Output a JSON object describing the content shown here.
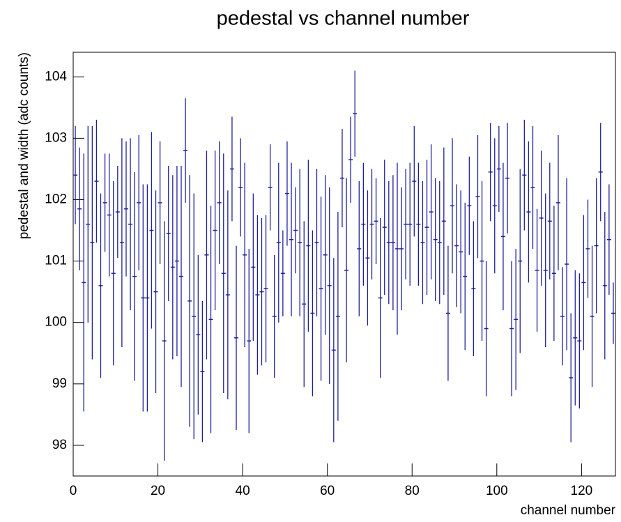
{
  "chart_data": {
    "type": "errorbar",
    "title": "pedestal vs channel number",
    "x_label": "channel number",
    "y_label": "pedestal and width (adc counts)",
    "color": "#1f1f99",
    "xlim": [
      0,
      128
    ],
    "xticks": [
      0,
      20,
      40,
      60,
      80,
      100,
      120
    ],
    "ylim": [
      97.5,
      104.4
    ],
    "yticks": [
      98,
      99,
      100,
      101,
      102,
      103,
      104
    ],
    "x": [
      0.5,
      1.5,
      2.5,
      3.5,
      4.5,
      5.5,
      6.5,
      7.5,
      8.5,
      9.5,
      10.5,
      11.5,
      12.5,
      13.5,
      14.5,
      15.5,
      16.5,
      17.5,
      18.5,
      19.5,
      20.5,
      21.5,
      22.5,
      23.5,
      24.5,
      25.5,
      26.5,
      27.5,
      28.5,
      29.5,
      30.5,
      31.5,
      32.5,
      33.5,
      34.5,
      35.5,
      36.5,
      37.5,
      38.5,
      39.5,
      40.5,
      41.5,
      42.5,
      43.5,
      44.5,
      45.5,
      46.5,
      47.5,
      48.5,
      49.5,
      50.5,
      51.5,
      52.5,
      53.5,
      54.5,
      55.5,
      56.5,
      57.5,
      58.5,
      59.5,
      60.5,
      61.5,
      62.5,
      63.5,
      64.5,
      65.5,
      66.5,
      67.5,
      68.5,
      69.5,
      70.5,
      71.5,
      72.5,
      73.5,
      74.5,
      75.5,
      76.5,
      77.5,
      78.5,
      79.5,
      80.5,
      81.5,
      82.5,
      83.5,
      84.5,
      85.5,
      86.5,
      87.5,
      88.5,
      89.5,
      90.5,
      91.5,
      92.5,
      93.5,
      94.5,
      95.5,
      96.5,
      97.5,
      98.5,
      99.5,
      100.5,
      101.5,
      102.5,
      103.5,
      104.5,
      105.5,
      106.5,
      107.5,
      108.5,
      109.5,
      110.5,
      111.5,
      112.5,
      113.5,
      114.5,
      115.5,
      116.5,
      117.5,
      118.5,
      119.5,
      120.5,
      121.5,
      122.5,
      123.5,
      124.5,
      125.5,
      126.5,
      127.5
    ],
    "values": [
      102.4,
      101.85,
      100.65,
      101.6,
      101.3,
      102.3,
      100.6,
      101.95,
      101.75,
      100.8,
      101.8,
      101.3,
      101.85,
      101.6,
      100.75,
      101.95,
      100.4,
      100.4,
      101.5,
      100.5,
      101.95,
      99.7,
      101.45,
      100.9,
      101.0,
      100.75,
      102.8,
      100.35,
      100.1,
      99.8,
      99.2,
      101.1,
      100.05,
      101.5,
      101.95,
      100.8,
      100.45,
      102.5,
      99.75,
      102.2,
      101.1,
      99.7,
      100.9,
      100.45,
      100.5,
      100.55,
      102.2,
      100.1,
      101.3,
      100.8,
      102.1,
      101.35,
      101.5,
      101.3,
      100.3,
      101.25,
      100.15,
      101.3,
      100.55,
      101.1,
      100.6,
      99.55,
      100.1,
      102.35,
      100.85,
      102.65,
      103.4,
      101.2,
      101.6,
      101.05,
      101.6,
      101.65,
      100.4,
      101.55,
      101.3,
      101.3,
      101.2,
      101.2,
      101.6,
      101.6,
      102.3,
      101.6,
      101.3,
      101.55,
      101.8,
      101.35,
      101.3,
      101.65,
      100.15,
      101.9,
      101.25,
      101.15,
      100.75,
      101.9,
      100.55,
      102.05,
      101.0,
      99.9,
      102.45,
      101.9,
      102.5,
      101.4,
      102.35,
      99.9,
      100.05,
      101.0,
      102.4,
      101.8,
      102.2,
      100.85,
      101.7,
      100.85,
      101.65,
      100.8,
      101.95,
      100.1,
      100.95,
      99.1,
      99.75,
      99.7,
      100.65,
      101.2,
      100.1,
      101.25,
      102.45,
      100.6,
      101.35,
      100.15
    ],
    "errors": [
      0.8,
      1.0,
      2.1,
      1.6,
      1.9,
      1.0,
      1.5,
      0.8,
      1.0,
      1.5,
      0.75,
      1.7,
      1.1,
      1.4,
      1.7,
      1.1,
      1.85,
      1.85,
      1.6,
      1.65,
      1.0,
      1.95,
      1.1,
      1.5,
      1.55,
      1.8,
      0.85,
      2.05,
      2.0,
      1.3,
      1.15,
      1.7,
      1.85,
      1.3,
      1.0,
      1.95,
      1.7,
      0.85,
      1.5,
      0.8,
      1.5,
      1.5,
      1.2,
      1.3,
      1.2,
      1.2,
      0.7,
      1.0,
      1.3,
      0.7,
      0.85,
      1.25,
      0.7,
      1.2,
      1.35,
      1.4,
      1.35,
      1.2,
      1.5,
      1.3,
      1.6,
      1.5,
      1.7,
      0.8,
      1.5,
      0.7,
      0.7,
      1.1,
      1.0,
      1.1,
      0.9,
      0.7,
      1.3,
      1.1,
      1.0,
      1.1,
      1.4,
      1.0,
      0.9,
      1.0,
      0.9,
      1.0,
      1.0,
      1.1,
      1.1,
      1.0,
      1.0,
      1.2,
      1.1,
      1.1,
      1.0,
      1.0,
      1.2,
      0.8,
      1.1,
      1.0,
      1.3,
      1.1,
      0.8,
      1.1,
      0.7,
      1.2,
      0.9,
      1.1,
      1.15,
      1.5,
      0.9,
      1.15,
      1.0,
      1.0,
      1.1,
      1.25,
      0.95,
      1.1,
      1.1,
      0.8,
      1.4,
      1.05,
      1.1,
      1.1,
      1.1,
      0.8,
      1.15,
      1.1,
      0.8,
      1.2,
      0.9,
      0.5
    ]
  }
}
